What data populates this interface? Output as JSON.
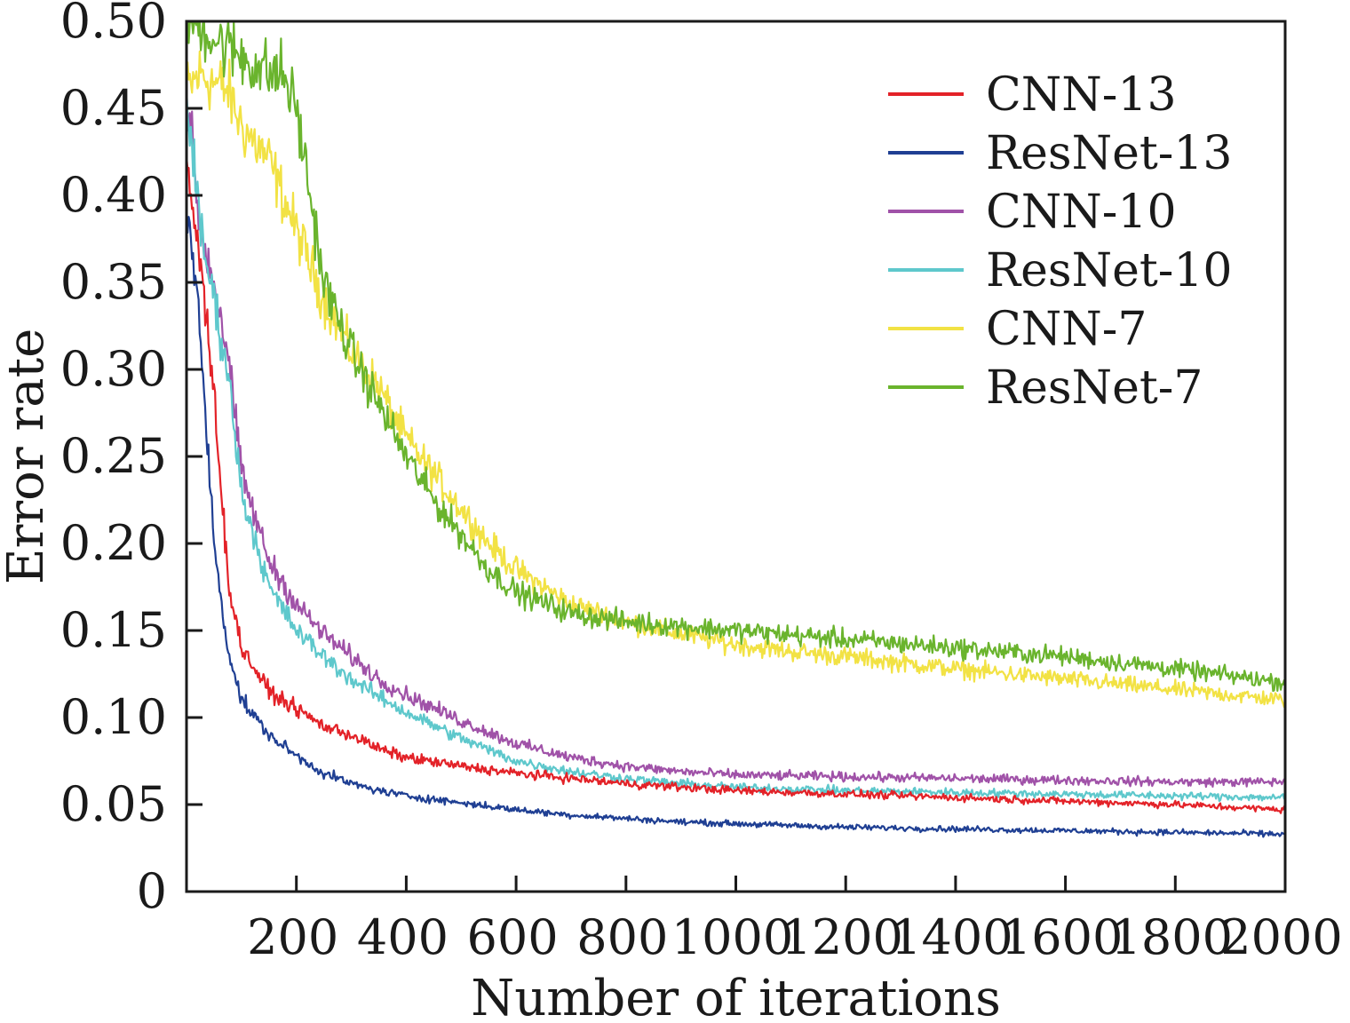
{
  "chart_data": {
    "type": "line",
    "xlabel": "Number of iterations",
    "ylabel": "Error rate",
    "xlim": [
      0,
      2000
    ],
    "ylim": [
      0,
      0.5
    ],
    "x_ticks": [
      200,
      400,
      600,
      800,
      1000,
      1200,
      1400,
      1600,
      1800,
      2000
    ],
    "x_tick_labels": [
      "200",
      "400",
      "600",
      "800",
      "1000",
      "1200",
      "1400",
      "1600",
      "1800",
      "2000"
    ],
    "y_ticks": [
      0,
      0.05,
      0.1,
      0.15,
      0.2,
      0.25,
      0.3,
      0.35,
      0.4,
      0.45,
      0.5
    ],
    "y_tick_labels": [
      "0",
      "0.05",
      "0.10",
      "0.15",
      "0.20",
      "0.25",
      "0.30",
      "0.35",
      "0.40",
      "0.45",
      "0.50"
    ],
    "legend_position": "top-right",
    "grid": false,
    "series": [
      {
        "name": "CNN-13",
        "color": "#e32228",
        "x": [
          0,
          25,
          50,
          75,
          100,
          150,
          200,
          250,
          300,
          350,
          400,
          500,
          600,
          700,
          800,
          900,
          1000,
          1200,
          1400,
          1600,
          1800,
          2000
        ],
        "values": [
          0.42,
          0.36,
          0.29,
          0.18,
          0.14,
          0.115,
          0.105,
          0.095,
          0.09,
          0.082,
          0.077,
          0.072,
          0.068,
          0.065,
          0.062,
          0.06,
          0.058,
          0.056,
          0.054,
          0.052,
          0.05,
          0.047
        ]
      },
      {
        "name": "ResNet-13",
        "color": "#1f3f93",
        "x": [
          0,
          25,
          50,
          75,
          100,
          150,
          200,
          250,
          300,
          350,
          400,
          500,
          600,
          700,
          800,
          900,
          1000,
          1200,
          1400,
          1600,
          1800,
          2000
        ],
        "values": [
          0.4,
          0.32,
          0.2,
          0.14,
          0.11,
          0.09,
          0.078,
          0.068,
          0.062,
          0.058,
          0.055,
          0.051,
          0.047,
          0.044,
          0.042,
          0.04,
          0.039,
          0.037,
          0.036,
          0.035,
          0.034,
          0.033
        ]
      },
      {
        "name": "CNN-10",
        "color": "#a052a8",
        "x": [
          0,
          25,
          50,
          75,
          100,
          150,
          200,
          250,
          300,
          350,
          400,
          500,
          600,
          700,
          800,
          900,
          1000,
          1200,
          1400,
          1600,
          1800,
          2000
        ],
        "values": [
          0.46,
          0.38,
          0.35,
          0.31,
          0.24,
          0.19,
          0.165,
          0.148,
          0.135,
          0.122,
          0.113,
          0.098,
          0.085,
          0.077,
          0.072,
          0.069,
          0.067,
          0.066,
          0.065,
          0.064,
          0.063,
          0.063
        ]
      },
      {
        "name": "ResNet-10",
        "color": "#5ec8cc",
        "x": [
          0,
          25,
          50,
          75,
          100,
          150,
          200,
          250,
          300,
          350,
          400,
          500,
          600,
          700,
          800,
          900,
          1000,
          1200,
          1400,
          1600,
          1800,
          2000
        ],
        "values": [
          0.46,
          0.38,
          0.34,
          0.3,
          0.23,
          0.175,
          0.15,
          0.135,
          0.122,
          0.112,
          0.103,
          0.088,
          0.075,
          0.069,
          0.065,
          0.062,
          0.06,
          0.058,
          0.057,
          0.056,
          0.055,
          0.054
        ]
      },
      {
        "name": "CNN-7",
        "color": "#f2e244",
        "x": [
          0,
          25,
          50,
          75,
          100,
          150,
          200,
          250,
          300,
          350,
          400,
          450,
          500,
          550,
          600,
          650,
          700,
          800,
          900,
          1000,
          1100,
          1200,
          1400,
          1600,
          1800,
          2000
        ],
        "values": [
          0.46,
          0.47,
          0.465,
          0.46,
          0.44,
          0.42,
          0.38,
          0.34,
          0.31,
          0.29,
          0.26,
          0.24,
          0.22,
          0.2,
          0.185,
          0.175,
          0.165,
          0.155,
          0.148,
          0.142,
          0.138,
          0.135,
          0.128,
          0.122,
          0.116,
          0.11
        ]
      },
      {
        "name": "ResNet-7",
        "color": "#6ab42d",
        "x": [
          0,
          25,
          50,
          75,
          100,
          150,
          175,
          200,
          225,
          250,
          300,
          350,
          400,
          450,
          500,
          550,
          600,
          700,
          800,
          1000,
          1200,
          1400,
          1600,
          1800,
          2000
        ],
        "values": [
          0.5,
          0.5,
          0.49,
          0.485,
          0.48,
          0.47,
          0.47,
          0.45,
          0.4,
          0.35,
          0.31,
          0.28,
          0.25,
          0.225,
          0.205,
          0.185,
          0.172,
          0.16,
          0.155,
          0.15,
          0.145,
          0.14,
          0.135,
          0.128,
          0.12
        ]
      }
    ]
  }
}
